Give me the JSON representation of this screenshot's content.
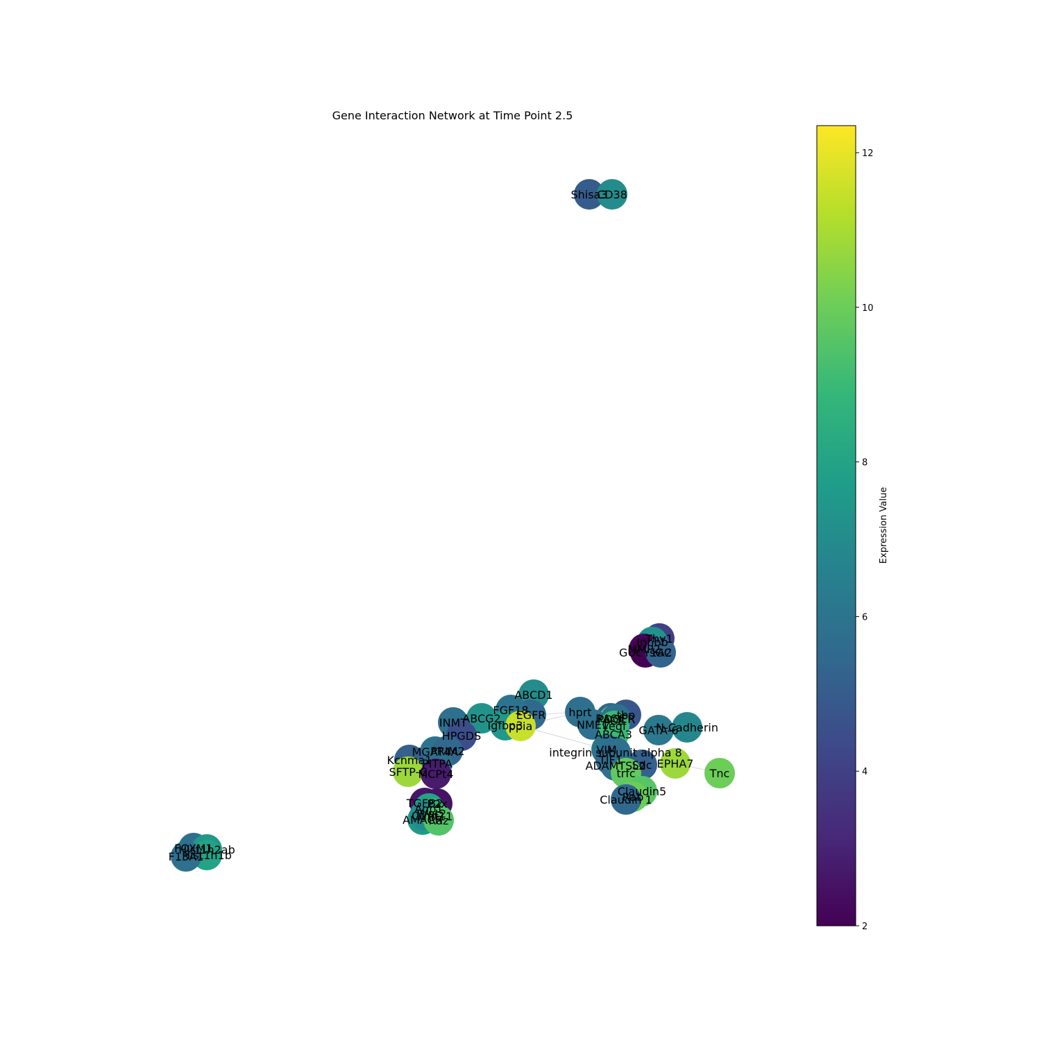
{
  "title": "Gene Interaction Network at Time Point 2.5",
  "colorbar": {
    "label": "Expression Value",
    "min": 2.0,
    "max": 12.35,
    "ticks": [
      2,
      4,
      6,
      8,
      10,
      12
    ],
    "colormap": [
      "#440154",
      "#482878",
      "#3e4989",
      "#31688e",
      "#26828e",
      "#1f9e89",
      "#35b779",
      "#6ece58",
      "#b5de2b",
      "#fde725"
    ]
  },
  "nodes": [
    {
      "label": "Shisa3",
      "value": 5.0
    },
    {
      "label": "CD38",
      "value": 7.0
    },
    {
      "label": "Thy1",
      "value": 4.0
    },
    {
      "label": "Inhbb",
      "value": 7.2
    },
    {
      "label": "MMP2",
      "value": 2.2
    },
    {
      "label": "GUCY1A2",
      "value": 2.0
    },
    {
      "label": "sGC",
      "value": 5.3
    },
    {
      "label": "ABCD1",
      "value": 7.0
    },
    {
      "label": "EGFR",
      "value": 5.5
    },
    {
      "label": "FGF18",
      "value": 6.0
    },
    {
      "label": "ABCG2",
      "value": 7.3
    },
    {
      "label": "INMT",
      "value": 5.8
    },
    {
      "label": "Igfbp3",
      "value": 7.5
    },
    {
      "label": "ppia",
      "value": 11.5
    },
    {
      "label": "HPGDS",
      "value": 4.5
    },
    {
      "label": "MGAT4A",
      "value": 6.0
    },
    {
      "label": "PRIM2",
      "value": 5.5
    },
    {
      "label": "Kcnma1",
      "value": 5.2
    },
    {
      "label": "PITPA",
      "value": 5.8
    },
    {
      "label": "SFTP-C",
      "value": 10.8
    },
    {
      "label": "MCPt4",
      "value": 2.8
    },
    {
      "label": "TGFB2",
      "value": 2.6
    },
    {
      "label": "P2x",
      "value": 2.5
    },
    {
      "label": "AMACR",
      "value": 7.6
    },
    {
      "label": "Aqp1",
      "value": 8.0
    },
    {
      "label": "Wnt2",
      "value": 9.0
    },
    {
      "label": "Wnt11",
      "value": 8.5
    },
    {
      "label": "Ctnn",
      "value": 7.0
    },
    {
      "label": "Raz",
      "value": 9.5
    },
    {
      "label": "FOXM1",
      "value": 5.8
    },
    {
      "label": "Hist1h2ab",
      "value": 7.5
    },
    {
      "label": "Hist1h1b",
      "value": 8.0
    },
    {
      "label": "F13A1",
      "value": 5.8
    },
    {
      "label": "hprt",
      "value": 5.8
    },
    {
      "label": "RAGE",
      "value": 5.3
    },
    {
      "label": "tbp",
      "value": 4.8
    },
    {
      "label": "ACE",
      "value": 9.5
    },
    {
      "label": "PDGFR",
      "value": 5.8
    },
    {
      "label": "NME1",
      "value": 5.8
    },
    {
      "label": "vegf",
      "value": 9.0
    },
    {
      "label": "ABCA3",
      "value": 9.0
    },
    {
      "label": "GATA-6",
      "value": 6.2
    },
    {
      "label": "N-Cadherin",
      "value": 6.8
    },
    {
      "label": "VIM",
      "value": 6.0
    },
    {
      "label": "integrin subunit alpha 8",
      "value": 5.8
    },
    {
      "label": "EPHA7",
      "value": 10.8
    },
    {
      "label": "Tnc",
      "value": 10.0
    },
    {
      "label": "TIF1",
      "value": 5.5
    },
    {
      "label": "ADAMTSL2",
      "value": 5.8
    },
    {
      "label": "Sdc",
      "value": 5.2
    },
    {
      "label": "trfc",
      "value": 9.8
    },
    {
      "label": "Claudin5",
      "value": 9.6
    },
    {
      "label": "Rab",
      "value": 10.0
    },
    {
      "label": "Claudin 1",
      "value": 5.5
    }
  ]
}
